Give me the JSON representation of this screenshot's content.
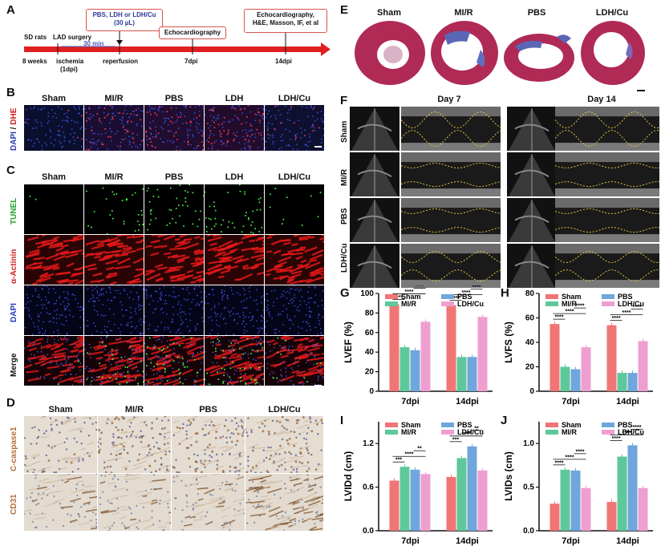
{
  "panels": {
    "A": "A",
    "B": "B",
    "C": "C",
    "D": "D",
    "E": "E",
    "F": "F",
    "G": "G",
    "H": "H",
    "I": "I",
    "J": "J"
  },
  "timeline": {
    "labels_top": [
      "SD rats",
      "LAD surgery"
    ],
    "labels_bottom": [
      "8 weeks",
      "ischemia",
      "(1dpi)",
      "reperfusion",
      "7dpi",
      "14dpi"
    ],
    "box_treat": [
      "PBS, LDH or LDH/Cu",
      "(30 µL)"
    ],
    "box_echo": "Echocardiography",
    "box_final": [
      "Echocardiography,",
      "H&E, Masson, IF, et al"
    ],
    "min_label": "30 min"
  },
  "b": {
    "groups": [
      "Sham",
      "MI/R",
      "PBS",
      "LDH",
      "LDH/Cu"
    ],
    "ylabel_a": "DAPI",
    "ylabel_sep": " / ",
    "ylabel_b": "DHE"
  },
  "c": {
    "groups": [
      "Sham",
      "MI/R",
      "PBS",
      "LDH",
      "LDH/Cu"
    ],
    "rows": [
      "TUNEL",
      "α-Actinin",
      "DAPI",
      "Merge"
    ]
  },
  "d": {
    "groups": [
      "Sham",
      "MI/R",
      "PBS",
      "LDH/Cu"
    ],
    "rows": [
      "C-caspase1",
      "CD31"
    ]
  },
  "e": {
    "groups": [
      "Sham",
      "MI/R",
      "PBS",
      "LDH/Cu"
    ]
  },
  "f": {
    "days": [
      "Day 7",
      "Day 14"
    ],
    "rows": [
      "Sham",
      "MI/R",
      "PBS",
      "LDH/Cu"
    ]
  },
  "colors": {
    "sham": "#f07575",
    "mir": "#5ec89a",
    "pbs": "#6fa6dc",
    "ldhcu": "#ee9fd0",
    "arrow": "#e02020",
    "he": "#b02a56"
  },
  "chart_data": [
    {
      "panel": "G",
      "type": "bar",
      "categories": [
        "7dpi",
        "14dpi"
      ],
      "ylabel": "LVEF (%)",
      "ylim": [
        0,
        100
      ],
      "yticks": [
        0,
        20,
        40,
        60,
        80,
        100
      ],
      "series": [
        {
          "name": "Sham",
          "values": [
            89,
            88
          ]
        },
        {
          "name": "MI/R",
          "values": [
            45,
            35
          ]
        },
        {
          "name": "PBS",
          "values": [
            42,
            35
          ]
        },
        {
          "name": "LDH/Cu",
          "values": [
            71,
            76
          ]
        }
      ],
      "sig": [
        "****",
        "****",
        "****",
        "****"
      ]
    },
    {
      "panel": "H",
      "type": "bar",
      "categories": [
        "7dpi",
        "14dpi"
      ],
      "ylabel": "LVFS (%)",
      "ylim": [
        0,
        80
      ],
      "yticks": [
        0,
        20,
        40,
        60,
        80
      ],
      "series": [
        {
          "name": "Sham",
          "values": [
            55,
            54
          ]
        },
        {
          "name": "MI/R",
          "values": [
            20,
            15
          ]
        },
        {
          "name": "PBS",
          "values": [
            18,
            15
          ]
        },
        {
          "name": "LDH/Cu",
          "values": [
            36,
            41
          ]
        }
      ],
      "sig": [
        "****",
        "****",
        "****",
        "****"
      ]
    },
    {
      "panel": "I",
      "type": "bar",
      "categories": [
        "7dpi",
        "14dpi"
      ],
      "ylabel": "LVIDd (cm)",
      "ylim": [
        0,
        1.5
      ],
      "yticks": [
        0,
        0.6,
        1.2
      ],
      "ytick_labels": [
        "0.0",
        "0.6",
        "1.2"
      ],
      "series": [
        {
          "name": "Sham",
          "values": [
            0.69,
            0.74
          ]
        },
        {
          "name": "MI/R",
          "values": [
            0.88,
            1.0
          ]
        },
        {
          "name": "PBS",
          "values": [
            0.84,
            1.16
          ]
        },
        {
          "name": "LDH/Cu",
          "values": [
            0.78,
            0.83
          ]
        }
      ],
      "sig": [
        "***",
        "****",
        "**",
        "***",
        "**"
      ]
    },
    {
      "panel": "J",
      "type": "bar",
      "categories": [
        "7dpi",
        "14dpi"
      ],
      "ylabel": "LVIDs (cm)",
      "ylim": [
        0,
        1.25
      ],
      "yticks": [
        0,
        0.5,
        1.0
      ],
      "ytick_labels": [
        "0.0",
        "0.5",
        "1.0"
      ],
      "series": [
        {
          "name": "Sham",
          "values": [
            0.31,
            0.33
          ]
        },
        {
          "name": "MI/R",
          "values": [
            0.7,
            0.85
          ]
        },
        {
          "name": "PBS",
          "values": [
            0.69,
            0.98
          ]
        },
        {
          "name": "LDH/Cu",
          "values": [
            0.49,
            0.49
          ]
        }
      ],
      "sig": [
        "****",
        "****",
        "****",
        "***"
      ]
    }
  ]
}
